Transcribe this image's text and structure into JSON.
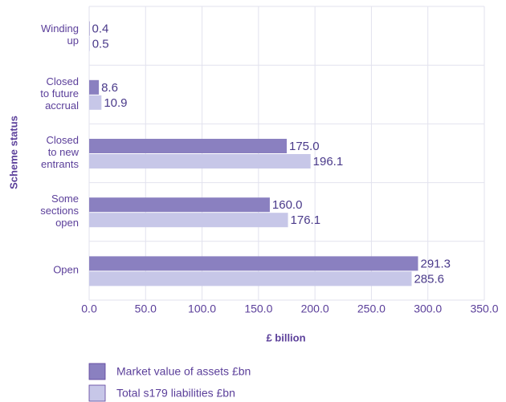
{
  "chart_data": {
    "type": "bar",
    "orientation": "horizontal",
    "xlabel": "£ billion",
    "ylabel": "Scheme status",
    "categories": [
      [
        "Winding",
        "up"
      ],
      [
        "Closed",
        "to future",
        "accrual"
      ],
      [
        "Closed",
        "to new",
        "entrants"
      ],
      [
        "Some",
        "sections",
        "open"
      ],
      [
        "Open"
      ]
    ],
    "series": [
      {
        "name": "Market value of assets £bn",
        "color": "#8a80c0",
        "values": [
          0.4,
          8.6,
          175,
          160,
          291.3
        ],
        "value_labels": [
          "0.4",
          "8.6",
          "175.0",
          "160.0",
          "291.3"
        ]
      },
      {
        "name": "Total s179 liabilities £bn",
        "color": "#c7c7e8",
        "values": [
          0.5,
          10.9,
          196.1,
          176.1,
          285.6
        ],
        "value_labels": [
          "0.5",
          "10.9",
          "196.1",
          "176.1",
          "285.6"
        ]
      }
    ],
    "xlim": [
      0,
      350
    ],
    "xticks": [
      {
        "value": 0,
        "label": "0.0"
      },
      {
        "value": 50,
        "label": "50.0"
      },
      {
        "value": 100,
        "label": "100.0"
      },
      {
        "value": 150,
        "label": "150.0"
      },
      {
        "value": 200,
        "label": "200.0"
      },
      {
        "value": 250,
        "label": "250.0"
      },
      {
        "value": 300,
        "label": "300.0"
      },
      {
        "value": 350,
        "label": "350.0"
      }
    ],
    "grid": true
  }
}
